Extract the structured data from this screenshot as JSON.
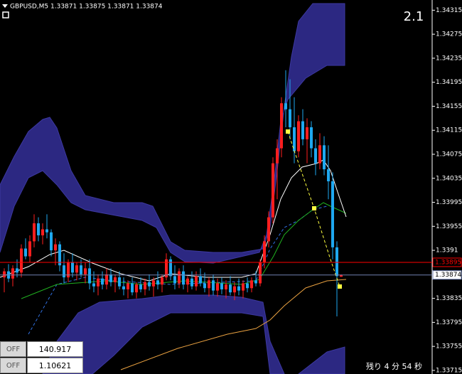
{
  "chart_data": {
    "type": "candlestick",
    "title": "GBPUSD,M5  1.33871 1.33875 1.33871 1.33874",
    "up_color": "#ff1e1e",
    "down_color": "#1ea8f0",
    "open": [
      1.3387,
      1.3388,
      1.33868,
      1.33885,
      1.33878,
      1.33918,
      1.33905,
      1.3393,
      1.3396,
      1.3394,
      1.3395,
      1.33945,
      1.33915,
      1.33925,
      1.3389,
      1.3387,
      1.33895,
      1.33878,
      1.3389,
      1.33875,
      1.33885,
      1.3386,
      1.33855,
      1.33868,
      1.33858,
      1.33875,
      1.33862,
      1.3387,
      1.33855,
      1.3385,
      1.3386,
      1.33845,
      1.33858,
      1.3385,
      1.33862,
      1.33855,
      1.33865,
      1.33858,
      1.3387,
      1.339,
      1.33872,
      1.3386,
      1.3388,
      1.33858,
      1.33868,
      1.33855,
      1.33872,
      1.3386,
      1.33852,
      1.33865,
      1.33848,
      1.3386,
      1.3385,
      1.33858,
      1.33845,
      1.33855,
      1.33848,
      1.3386,
      1.33852,
      1.33865,
      1.3386,
      1.33895,
      1.3393,
      1.3397,
      1.3406,
      1.34085,
      1.3416,
      1.3415,
      1.3412,
      1.3408,
      1.3413,
      1.341,
      1.3412,
      1.34085,
      1.3406,
      1.3409,
      1.3405,
      1.3403,
      1.3392,
      1.33871
    ],
    "high": [
      1.33885,
      1.33892,
      1.3389,
      1.339,
      1.33925,
      1.33935,
      1.3394,
      1.33975,
      1.3397,
      1.3396,
      1.33975,
      1.3395,
      1.33935,
      1.3393,
      1.3391,
      1.339,
      1.3391,
      1.33895,
      1.339,
      1.33895,
      1.339,
      1.3388,
      1.33875,
      1.3388,
      1.33885,
      1.33885,
      1.33875,
      1.3388,
      1.3387,
      1.33865,
      1.3387,
      1.33862,
      1.3387,
      1.33868,
      1.33875,
      1.3387,
      1.3388,
      1.33875,
      1.3391,
      1.33905,
      1.3389,
      1.33885,
      1.3389,
      1.33872,
      1.3388,
      1.3388,
      1.33885,
      1.33878,
      1.3387,
      1.33875,
      1.33868,
      1.3387,
      1.33865,
      1.33872,
      1.33862,
      1.33868,
      1.33865,
      1.3387,
      1.3387,
      1.3388,
      1.339,
      1.3394,
      1.3398,
      1.3407,
      1.341,
      1.3417,
      1.34215,
      1.342,
      1.3417,
      1.3414,
      1.3415,
      1.34135,
      1.3413,
      1.341,
      1.3411,
      1.34105,
      1.3409,
      1.34045,
      1.3393,
      1.33875
    ],
    "low": [
      1.33845,
      1.33862,
      1.33855,
      1.3387,
      1.3387,
      1.339,
      1.33895,
      1.3392,
      1.3393,
      1.33925,
      1.33935,
      1.33905,
      1.3389,
      1.3388,
      1.3386,
      1.33862,
      1.3387,
      1.33865,
      1.3387,
      1.3386,
      1.3385,
      1.33845,
      1.3384,
      1.3385,
      1.3385,
      1.33855,
      1.33845,
      1.3385,
      1.3384,
      1.33835,
      1.3384,
      1.33835,
      1.33845,
      1.3384,
      1.33848,
      1.33838,
      1.3385,
      1.33845,
      1.33865,
      1.33865,
      1.3385,
      1.33852,
      1.3385,
      1.33845,
      1.3385,
      1.33848,
      1.33855,
      1.33845,
      1.33838,
      1.3384,
      1.33838,
      1.33842,
      1.33835,
      1.3384,
      1.33832,
      1.3384,
      1.33835,
      1.33845,
      1.33845,
      1.33855,
      1.33855,
      1.33885,
      1.3392,
      1.3396,
      1.34,
      1.3407,
      1.3412,
      1.341,
      1.3406,
      1.3407,
      1.3409,
      1.3406,
      1.3407,
      1.3404,
      1.3405,
      1.3404,
      1.34,
      1.339,
      1.33805,
      1.33871
    ],
    "close": [
      1.3388,
      1.33868,
      1.33885,
      1.33878,
      1.33918,
      1.33905,
      1.3393,
      1.3396,
      1.3394,
      1.3395,
      1.33945,
      1.33915,
      1.33925,
      1.3389,
      1.3387,
      1.33895,
      1.33878,
      1.3389,
      1.33875,
      1.33885,
      1.3386,
      1.33855,
      1.33868,
      1.33858,
      1.33875,
      1.33862,
      1.3387,
      1.33855,
      1.3385,
      1.3386,
      1.33845,
      1.33858,
      1.3385,
      1.33862,
      1.33855,
      1.33865,
      1.33858,
      1.3387,
      1.339,
      1.33872,
      1.3386,
      1.3388,
      1.33858,
      1.33868,
      1.33855,
      1.33872,
      1.3386,
      1.33852,
      1.33865,
      1.33848,
      1.3386,
      1.3385,
      1.33858,
      1.33845,
      1.33855,
      1.33848,
      1.3386,
      1.33852,
      1.33865,
      1.3386,
      1.33895,
      1.3393,
      1.3397,
      1.3406,
      1.34085,
      1.3416,
      1.3415,
      1.3412,
      1.3408,
      1.3413,
      1.341,
      1.3412,
      1.34085,
      1.3406,
      1.3409,
      1.3405,
      1.3403,
      1.3392,
      1.33872,
      1.33874
    ],
    "ylim": [
      1.33709,
      1.34332
    ],
    "yticks": [
      1.34315,
      1.34275,
      1.34235,
      1.34195,
      1.34155,
      1.34115,
      1.34075,
      1.34035,
      1.33995,
      1.33955,
      {
        "value": 1.33915,
        "label": "1.3391"
      },
      1.33835,
      1.33795,
      1.33755,
      1.33715
    ],
    "price_lines": [
      {
        "value": 1.33895,
        "color": "#ff0000"
      },
      {
        "value": 1.33874,
        "color": "#7080b0"
      }
    ],
    "spread": "2.1",
    "countdown": "残り 4 分 54 秒"
  },
  "panel": {
    "rows": [
      {
        "button": "OFF",
        "value": "140.917"
      },
      {
        "button": "OFF",
        "value": "1.10621"
      }
    ]
  }
}
